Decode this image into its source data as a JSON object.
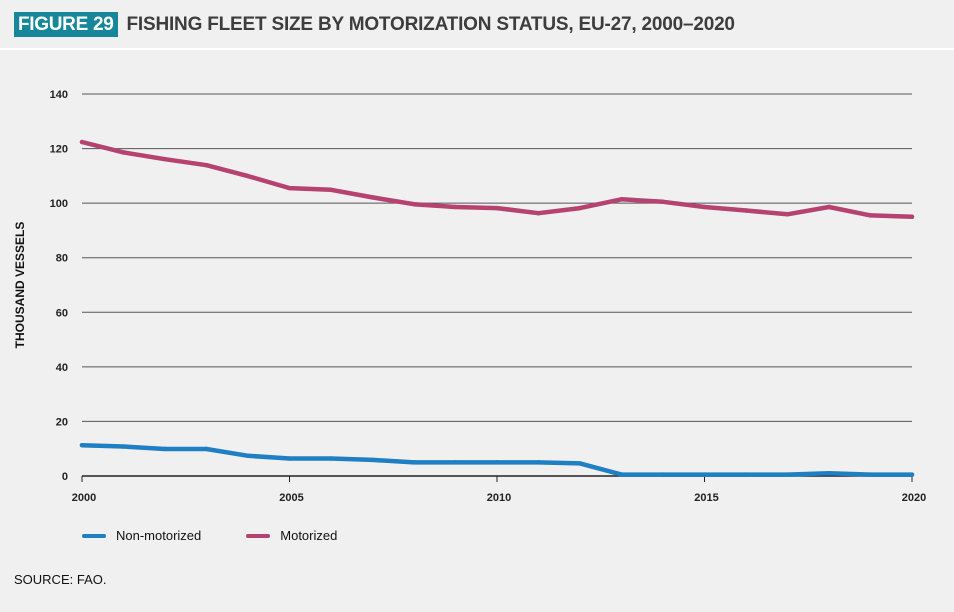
{
  "figure": {
    "badge": "FIGURE 29",
    "title": "FISHING FLEET SIZE BY MOTORIZATION STATUS, EU-27, 2000–2020"
  },
  "source": "SOURCE: FAO.",
  "colors": {
    "badge": "#16879a",
    "non_motorized": "#1f7fc4",
    "motorized": "#b5426f",
    "grid": "#555555"
  },
  "chart_data": {
    "type": "line",
    "x": [
      2000,
      2001,
      2002,
      2003,
      2004,
      2005,
      2006,
      2007,
      2008,
      2009,
      2010,
      2011,
      2012,
      2013,
      2014,
      2015,
      2016,
      2017,
      2018,
      2019,
      2020
    ],
    "series": [
      {
        "name": "Non-motorized",
        "color": "#1f7fc4",
        "values": [
          11.3,
          10.8,
          9.9,
          9.9,
          7.4,
          6.4,
          6.4,
          5.9,
          5.0,
          5.0,
          5.0,
          5.0,
          4.6,
          0.5,
          0.5,
          0.5,
          0.5,
          0.5,
          1.0,
          0.5,
          0.5
        ]
      },
      {
        "name": "Motorized",
        "color": "#b5426f",
        "values": [
          122.4,
          118.6,
          116.1,
          113.9,
          109.9,
          105.5,
          104.9,
          102.1,
          99.6,
          98.6,
          98.2,
          96.3,
          98.2,
          101.4,
          100.5,
          98.6,
          97.3,
          95.9,
          98.6,
          95.5,
          95.0
        ]
      }
    ],
    "xticks": [
      2000,
      2005,
      2010,
      2015,
      2020
    ],
    "yticks": [
      0,
      20,
      40,
      60,
      80,
      100,
      120,
      140
    ],
    "ylim": [
      0,
      140
    ],
    "xlim": [
      2000,
      2020
    ],
    "ylabel": "THOUSAND VESSELS",
    "xlabel": "",
    "grid": true,
    "legend": "bottom-left"
  }
}
